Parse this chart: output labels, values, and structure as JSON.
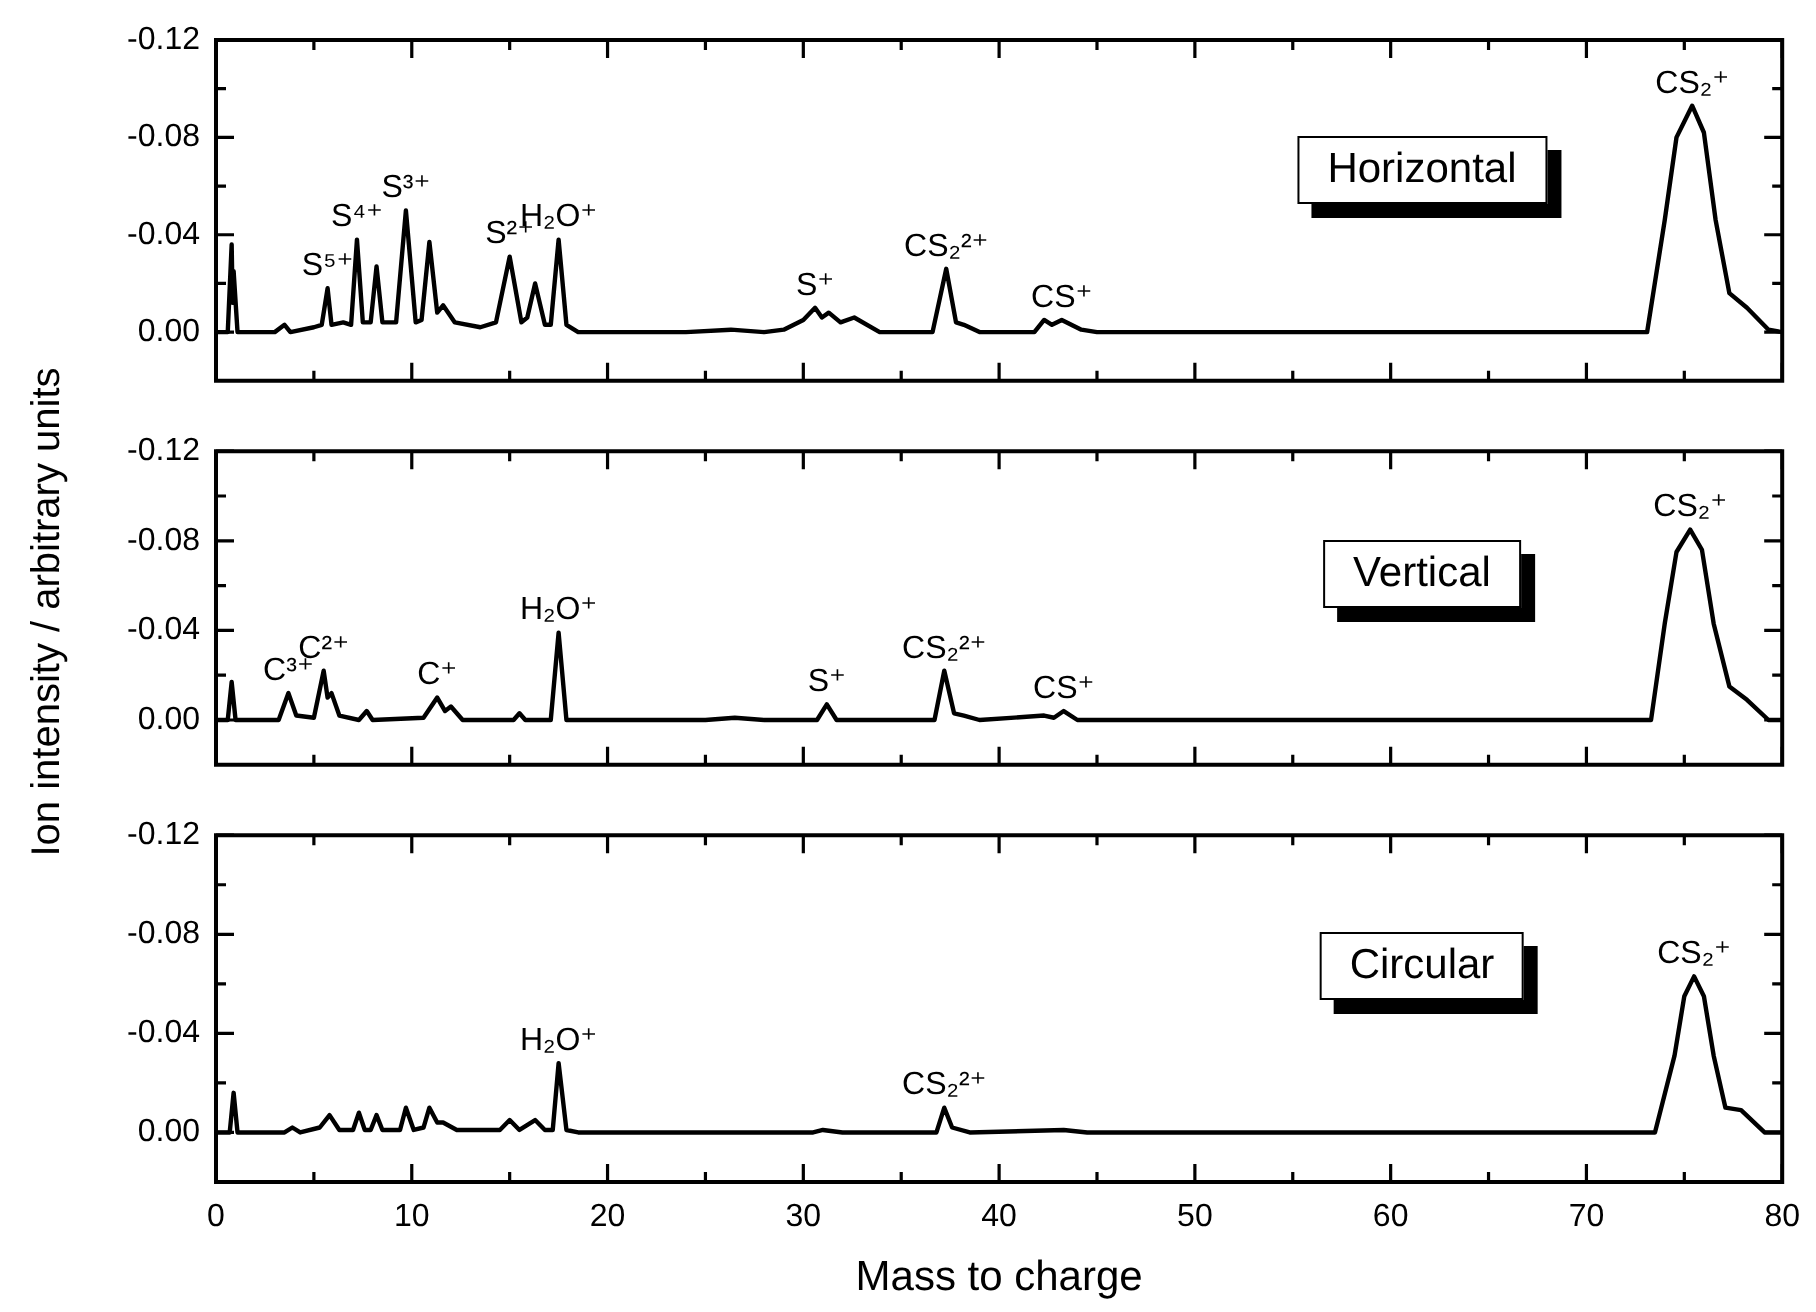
{
  "chart_data": [
    {
      "type": "line",
      "xlim": [
        0,
        80
      ],
      "xticks": [
        0,
        {
          "value": 5,
          "label": null
        },
        10,
        {
          "value": 15,
          "label": null
        },
        20,
        {
          "value": 25,
          "label": null
        },
        30,
        {
          "value": 35,
          "label": null
        },
        40,
        {
          "value": 45,
          "label": null
        },
        50,
        {
          "value": 55,
          "label": null
        },
        60,
        {
          "value": 65,
          "label": null
        },
        70,
        {
          "value": 75,
          "label": null
        },
        80
      ],
      "ylim": [
        0.02,
        -0.12
      ],
      "yticks": [
        -0.12,
        {
          "value": -0.1,
          "label": null
        },
        -0.08,
        {
          "value": -0.06,
          "label": null
        },
        -0.04,
        {
          "value": -0.02,
          "label": null
        },
        {
          "value": 0,
          "label": "0.00"
        }
      ],
      "tick_labels": "y",
      "series": [
        {
          "color": "#000000",
          "x": [
            0,
            0.6,
            0.8,
            0.85,
            0.9,
            1.1,
            3.0,
            3.5,
            3.8,
            5.0,
            5.4,
            5.7,
            5.9,
            6.5,
            6.9,
            7.2,
            7.5,
            7.9,
            8.2,
            8.5,
            9.2,
            9.7,
            10.2,
            10.5,
            10.9,
            11.3,
            11.6,
            12.2,
            13.5,
            14.3,
            15.0,
            15.6,
            15.9,
            16.3,
            16.8,
            17.1,
            17.5,
            17.9,
            18.5,
            24,
            26.3,
            28,
            29,
            30,
            30.6,
            30.95,
            31.3,
            31.9,
            32.6,
            33.9,
            36.6,
            37.3,
            37.8,
            38.2,
            39,
            41.8,
            42.3,
            42.7,
            43.2,
            44.2,
            45,
            73.1,
            74.0,
            74.6,
            75.4,
            76.0,
            76.6,
            77.3,
            78.2,
            79.3,
            80
          ],
          "values": [
            0,
            0,
            -0.036,
            -0.012,
            -0.025,
            0,
            0,
            -0.003,
            0,
            -0.002,
            -0.003,
            -0.018,
            -0.003,
            -0.004,
            -0.003,
            -0.038,
            -0.004,
            -0.004,
            -0.027,
            -0.004,
            -0.004,
            -0.05,
            -0.004,
            -0.005,
            -0.037,
            -0.008,
            -0.011,
            -0.004,
            -0.002,
            -0.004,
            -0.031,
            -0.004,
            -0.006,
            -0.02,
            -0.003,
            -0.003,
            -0.038,
            -0.003,
            0,
            0,
            -0.001,
            0,
            -0.001,
            -0.005,
            -0.01,
            -0.006,
            -0.008,
            -0.004,
            -0.006,
            0,
            0,
            -0.026,
            -0.004,
            -0.003,
            0,
            0,
            -0.005,
            -0.003,
            -0.005,
            -0.001,
            0,
            0,
            -0.046,
            -0.08,
            -0.093,
            -0.082,
            -0.046,
            -0.016,
            -0.01,
            -0.001,
            0
          ]
        }
      ],
      "annotations": [
        {
          "text": "S⁵⁺",
          "x": 5.7,
          "y": -0.018
        },
        {
          "text": "S⁴⁺",
          "x": 7.2,
          "y": -0.038
        },
        {
          "text": "S³⁺",
          "x": 9.7,
          "y": -0.05
        },
        {
          "text": "S²⁺",
          "x": 15.0,
          "y": -0.031
        },
        {
          "text": "H₂O⁺",
          "x": 17.5,
          "y": -0.038
        },
        {
          "text": "S⁺",
          "x": 30.6,
          "y": -0.01
        },
        {
          "text": "CS₂²⁺",
          "x": 37.3,
          "y": -0.026
        },
        {
          "text": "CS⁺",
          "x": 43.2,
          "y": -0.005
        },
        {
          "text": "CS₂⁺",
          "x": 75.4,
          "y": -0.093
        },
        "Horizontal"
      ]
    },
    {
      "type": "line",
      "xlim": [
        0,
        80
      ],
      "xticks": [
        0,
        {
          "value": 5,
          "label": null
        },
        10,
        {
          "value": 15,
          "label": null
        },
        20,
        {
          "value": 25,
          "label": null
        },
        30,
        {
          "value": 35,
          "label": null
        },
        40,
        {
          "value": 45,
          "label": null
        },
        50,
        {
          "value": 55,
          "label": null
        },
        60,
        {
          "value": 65,
          "label": null
        },
        70,
        {
          "value": 75,
          "label": null
        },
        80
      ],
      "ylim": [
        0.02,
        -0.12
      ],
      "yticks": [
        -0.12,
        {
          "value": -0.1,
          "label": null
        },
        -0.08,
        {
          "value": -0.06,
          "label": null
        },
        -0.04,
        {
          "value": -0.02,
          "label": null
        },
        {
          "value": 0,
          "label": "0.00"
        }
      ],
      "tick_labels": "y",
      "ylabel": "Ion intensity / arbitrary units",
      "series": [
        {
          "color": "#000000",
          "x": [
            0,
            0.6,
            0.8,
            1.0,
            3.2,
            3.7,
            4.1,
            5.0,
            5.5,
            5.7,
            5.9,
            6.3,
            7.3,
            7.7,
            8.0,
            10.6,
            11.3,
            11.7,
            12.0,
            12.6,
            15.2,
            15.5,
            15.8,
            17.1,
            17.5,
            17.9,
            25,
            26.5,
            28,
            30.7,
            31.2,
            31.7,
            36.7,
            37.2,
            37.7,
            38.2,
            39,
            42.3,
            42.8,
            43.3,
            44,
            73.3,
            74.0,
            74.6,
            75.3,
            75.9,
            76.5,
            77.3,
            78.2,
            79.3,
            80
          ],
          "values": [
            0,
            0,
            -0.017,
            0,
            0,
            -0.012,
            -0.002,
            -0.001,
            -0.022,
            -0.01,
            -0.012,
            -0.002,
            0,
            -0.004,
            0,
            -0.001,
            -0.01,
            -0.004,
            -0.006,
            0,
            0,
            -0.003,
            0,
            0,
            -0.039,
            0,
            0,
            -0.001,
            0,
            0,
            -0.007,
            0,
            0,
            -0.022,
            -0.003,
            -0.002,
            0,
            -0.002,
            -0.001,
            -0.004,
            0,
            0,
            -0.043,
            -0.075,
            -0.085,
            -0.076,
            -0.043,
            -0.015,
            -0.009,
            0,
            0
          ]
        }
      ],
      "annotations": [
        {
          "text": "C³⁺",
          "x": 3.7,
          "y": -0.012
        },
        {
          "text": "C²⁺",
          "x": 5.5,
          "y": -0.022
        },
        {
          "text": "C⁺",
          "x": 11.3,
          "y": -0.01
        },
        {
          "text": "H₂O⁺",
          "x": 17.5,
          "y": -0.039
        },
        {
          "text": "S⁺",
          "x": 31.2,
          "y": -0.007
        },
        {
          "text": "CS₂²⁺",
          "x": 37.2,
          "y": -0.022
        },
        {
          "text": "CS⁺",
          "x": 43.3,
          "y": -0.004
        },
        {
          "text": "CS₂⁺",
          "x": 75.3,
          "y": -0.085
        },
        "Vertical"
      ]
    },
    {
      "type": "line",
      "xlim": [
        0,
        80
      ],
      "xticks": [
        0,
        {
          "value": 5,
          "label": null
        },
        10,
        {
          "value": 15,
          "label": null
        },
        20,
        {
          "value": 25,
          "label": null
        },
        30,
        {
          "value": 35,
          "label": null
        },
        40,
        {
          "value": 45,
          "label": null
        },
        50,
        {
          "value": 55,
          "label": null
        },
        60,
        {
          "value": 65,
          "label": null
        },
        70,
        {
          "value": 75,
          "label": null
        },
        80
      ],
      "ylim": [
        0.02,
        -0.12
      ],
      "yticks": [
        -0.12,
        {
          "value": -0.1,
          "label": null
        },
        -0.08,
        {
          "value": -0.06,
          "label": null
        },
        -0.04,
        {
          "value": -0.02,
          "label": null
        },
        {
          "value": 0,
          "label": "0.00"
        }
      ],
      "xlabel": "Mass to charge",
      "series": [
        {
          "color": "#000000",
          "x": [
            0,
            0.7,
            0.9,
            1.1,
            3.5,
            3.9,
            4.3,
            5.3,
            5.8,
            6.3,
            7.0,
            7.3,
            7.6,
            7.9,
            8.2,
            8.5,
            9.4,
            9.7,
            10.1,
            10.6,
            10.9,
            11.3,
            11.6,
            12.3,
            14.5,
            15.0,
            15.5,
            16.3,
            16.8,
            17.2,
            17.5,
            17.9,
            18.5,
            30.5,
            31,
            32,
            36.8,
            37.2,
            37.6,
            38.5,
            43.3,
            44.5,
            73.5,
            74.5,
            75.0,
            75.5,
            76.0,
            76.5,
            77.1,
            77.9,
            79.1,
            80
          ],
          "values": [
            0,
            0,
            -0.016,
            0,
            0,
            -0.002,
            0,
            -0.002,
            -0.007,
            -0.001,
            -0.001,
            -0.008,
            -0.001,
            -0.001,
            -0.007,
            -0.001,
            -0.001,
            -0.01,
            -0.001,
            -0.002,
            -0.01,
            -0.004,
            -0.004,
            -0.001,
            -0.001,
            -0.005,
            -0.001,
            -0.005,
            -0.001,
            -0.001,
            -0.028,
            -0.001,
            0,
            0,
            -0.001,
            0,
            0,
            -0.01,
            -0.002,
            0,
            -0.001,
            0,
            0,
            -0.031,
            -0.055,
            -0.063,
            -0.055,
            -0.031,
            -0.01,
            -0.009,
            0,
            0
          ]
        }
      ],
      "annotations": [
        {
          "text": "H₂O⁺",
          "x": 17.5,
          "y": -0.028
        },
        {
          "text": "CS₂²⁺",
          "x": 37.2,
          "y": -0.01
        },
        {
          "text": "CS₂⁺",
          "x": 75.5,
          "y": -0.063
        },
        "Circular"
      ]
    }
  ]
}
